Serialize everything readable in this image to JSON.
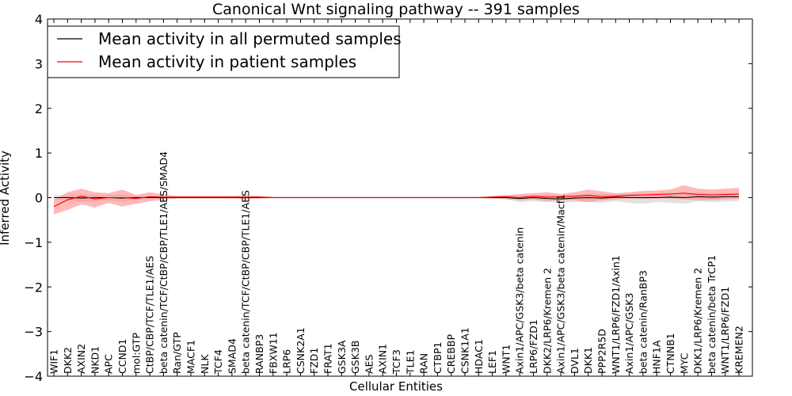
{
  "chart_data": {
    "type": "line",
    "title": "Canonical Wnt signaling pathway -- 391 samples",
    "xlabel": "Cellular Entities",
    "ylabel": "Inferred Activity",
    "ylim": [
      -4,
      4
    ],
    "yticks": [
      -4,
      -3,
      -2,
      -1,
      0,
      1,
      2,
      3,
      4
    ],
    "ytick_labels": [
      "−4",
      "−3",
      "−2",
      "−1",
      "0",
      "1",
      "2",
      "3",
      "4"
    ],
    "legend_position": "top-left",
    "categories": [
      "WIF1",
      "DKK2",
      "AXIN2",
      "NKD1",
      "APC",
      "CCND1",
      "mol:GTP",
      "CtBP/CBP/TCF/TLE1/AES",
      "beta catenin/TCF/CtBP/CBP/TLE1/AES/SMAD4",
      "Ran/GTP",
      "MACF1",
      "NLK",
      "TCF4",
      "SMAD4",
      "beta catenin/TCF/CtBP/CBP/TLE1/AES",
      "RANBP3",
      "FBXW11",
      "LRP6",
      "CSNK2A1",
      "FZD1",
      "FRAT1",
      "GSK3A",
      "GSK3B",
      "AES",
      "AXIN1",
      "TCF3",
      "TLE1",
      "RAN",
      "CTBP1",
      "CREBBP",
      "CSNK1A1",
      "HDAC1",
      "LEF1",
      "WNT1",
      "Axin1/APC/GSK3/beta catenin",
      "LRP6/FZD1",
      "DKK2/LRP6/Kremen 2",
      "Axin1/APC/GSK3/beta catenin/Macf1",
      "DVL1",
      "DKK1",
      "PPP2R5D",
      "WNT1/LRP6/FZD1/Axin1",
      "Axin1/APC/GSK3",
      "beta catenin/RanBP3",
      "HNF1A",
      "CTNNB1",
      "MYC",
      "DKK1/LRP6/Kremen 2",
      "beta catenin/beta TrCP1",
      "WNT1/LRP6/FZD1",
      "KREMEN2"
    ],
    "series": [
      {
        "name": "Mean activity in all permuted samples",
        "color": "#000000",
        "band_color": "#bfbfbf",
        "values": [
          0.0,
          0.0,
          -0.01,
          0.0,
          0.0,
          -0.01,
          0.0,
          0.0,
          0.0,
          0.0,
          0.0,
          0.0,
          0.0,
          0.0,
          0.0,
          0.0,
          0.0,
          0.0,
          0.0,
          0.0,
          0.0,
          0.0,
          0.0,
          0.0,
          0.0,
          0.0,
          0.0,
          0.0,
          0.0,
          0.0,
          0.0,
          0.0,
          0.0,
          0.0,
          -0.02,
          0.0,
          -0.02,
          -0.03,
          -0.01,
          0.0,
          -0.01,
          0.01,
          0.0,
          0.0,
          0.0,
          0.01,
          0.0,
          0.02,
          0.01,
          0.02,
          0.02
        ],
        "lower": [
          -0.05,
          -0.06,
          -0.1,
          -0.08,
          -0.06,
          -0.09,
          -0.04,
          -0.04,
          -0.03,
          -0.02,
          -0.02,
          -0.02,
          -0.02,
          -0.02,
          -0.02,
          -0.02,
          -0.02,
          -0.02,
          -0.02,
          -0.02,
          -0.02,
          -0.02,
          -0.02,
          -0.02,
          -0.02,
          -0.02,
          -0.02,
          -0.02,
          -0.02,
          -0.02,
          -0.02,
          -0.02,
          -0.03,
          -0.04,
          -0.1,
          -0.08,
          -0.1,
          -0.12,
          -0.1,
          -0.1,
          -0.12,
          -0.08,
          -0.12,
          -0.14,
          -0.1,
          -0.12,
          -0.14,
          -0.08,
          -0.1,
          -0.09,
          -0.08
        ],
        "upper": [
          0.05,
          0.06,
          0.08,
          0.06,
          0.06,
          0.07,
          0.04,
          0.04,
          0.03,
          0.02,
          0.02,
          0.02,
          0.02,
          0.02,
          0.02,
          0.02,
          0.02,
          0.02,
          0.02,
          0.02,
          0.02,
          0.02,
          0.02,
          0.02,
          0.02,
          0.02,
          0.02,
          0.02,
          0.02,
          0.02,
          0.02,
          0.02,
          0.03,
          0.04,
          0.06,
          0.06,
          0.06,
          0.05,
          0.06,
          0.08,
          0.08,
          0.08,
          0.08,
          0.09,
          0.1,
          0.11,
          0.1,
          0.12,
          0.1,
          0.11,
          0.1
        ]
      },
      {
        "name": "Mean activity in patient samples",
        "color": "#ff0000",
        "band_color": "#ff8080",
        "values": [
          -0.2,
          -0.05,
          0.03,
          -0.03,
          0.0,
          0.0,
          -0.02,
          0.02,
          0.01,
          0.01,
          0.01,
          0.01,
          0.01,
          0.01,
          0.01,
          0.01,
          0.0,
          0.0,
          0.0,
          0.0,
          0.0,
          0.0,
          0.0,
          0.0,
          0.0,
          0.0,
          0.0,
          0.0,
          0.0,
          0.0,
          0.0,
          0.0,
          0.01,
          0.02,
          0.0,
          0.03,
          0.01,
          0.02,
          0.03,
          0.05,
          0.02,
          0.03,
          0.05,
          0.06,
          0.07,
          0.08,
          0.1,
          0.07,
          0.06,
          0.07,
          0.08
        ],
        "lower": [
          -0.37,
          -0.28,
          -0.15,
          -0.22,
          -0.12,
          -0.2,
          -0.14,
          -0.08,
          -0.04,
          -0.02,
          -0.02,
          -0.02,
          -0.02,
          -0.02,
          -0.03,
          -0.02,
          -0.01,
          -0.01,
          -0.01,
          -0.01,
          -0.01,
          -0.01,
          -0.01,
          -0.01,
          -0.01,
          -0.01,
          -0.01,
          -0.01,
          -0.01,
          -0.01,
          -0.01,
          -0.01,
          -0.02,
          -0.03,
          -0.06,
          -0.04,
          -0.08,
          -0.06,
          -0.06,
          -0.1,
          -0.06,
          -0.04,
          -0.02,
          -0.03,
          -0.02,
          -0.02,
          -0.04,
          -0.06,
          -0.05,
          -0.04,
          -0.03
        ],
        "upper": [
          -0.05,
          0.12,
          0.2,
          0.12,
          0.1,
          0.18,
          0.06,
          0.12,
          0.07,
          0.04,
          0.04,
          0.04,
          0.04,
          0.04,
          0.05,
          0.04,
          0.02,
          0.02,
          0.02,
          0.02,
          0.02,
          0.02,
          0.02,
          0.02,
          0.02,
          0.02,
          0.02,
          0.02,
          0.02,
          0.02,
          0.02,
          0.02,
          0.04,
          0.06,
          0.08,
          0.1,
          0.12,
          0.08,
          0.12,
          0.18,
          0.14,
          0.1,
          0.12,
          0.15,
          0.16,
          0.18,
          0.28,
          0.2,
          0.18,
          0.2,
          0.22
        ]
      }
    ]
  }
}
